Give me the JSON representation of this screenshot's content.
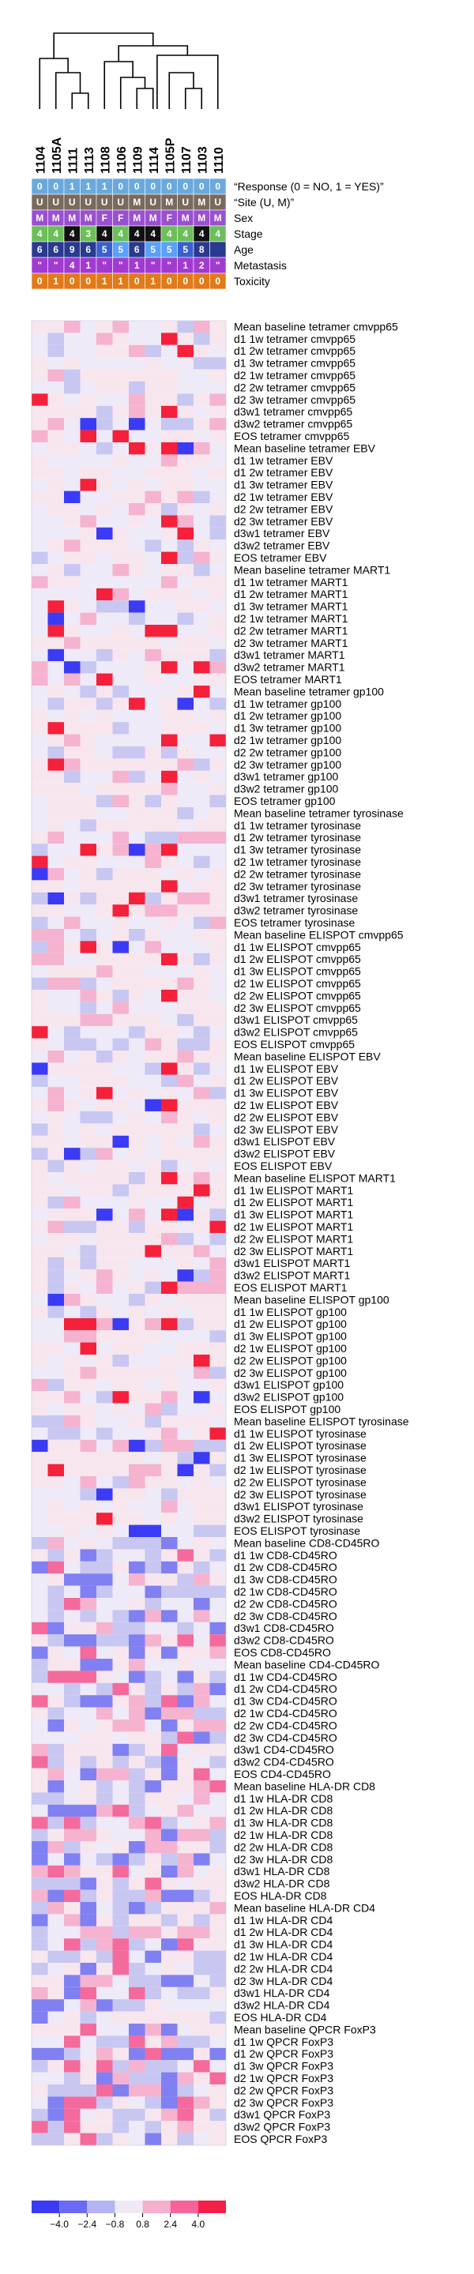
{
  "columns": [
    "1104",
    "1105A",
    "1111",
    "1113",
    "1108",
    "1106",
    "1109",
    "1114",
    "1105P",
    "1107",
    "1103",
    "1110"
  ],
  "covariates": [
    {
      "label": "“Response (0 = NO, 1 = YES)”",
      "values": [
        "0",
        "0",
        "1",
        "1",
        "1",
        "0",
        "0",
        "0",
        "0",
        "0",
        "0",
        "0"
      ],
      "colors": [
        "#6aa9de",
        "#6aa9de",
        "#6aa9de",
        "#6aa9de",
        "#6aa9de",
        "#6aa9de",
        "#6aa9de",
        "#6aa9de",
        "#6aa9de",
        "#6aa9de",
        "#6aa9de",
        "#6aa9de"
      ],
      "text_colors": [
        "#ffffff",
        "#ffffff",
        "#ffffff",
        "#ffffff",
        "#ffffff",
        "#ffffff",
        "#ffffff",
        "#ffffff",
        "#ffffff",
        "#ffffff",
        "#ffffff",
        "#ffffff"
      ]
    },
    {
      "label": "“Site (U, M)”",
      "values": [
        "U",
        "U",
        "U",
        "U",
        "U",
        "U",
        "M",
        "U",
        "M",
        "U",
        "M",
        "U"
      ],
      "colors": [
        "#7a6a5e",
        "#7a6a5e",
        "#7a6a5e",
        "#7a6a5e",
        "#7a6a5e",
        "#7a6a5e",
        "#7a6a5e",
        "#7a6a5e",
        "#7a6a5e",
        "#7a6a5e",
        "#7a6a5e",
        "#7a6a5e"
      ],
      "text_colors": [
        "#ffffff",
        "#ffffff",
        "#ffffff",
        "#ffffff",
        "#ffffff",
        "#ffffff",
        "#ffffff",
        "#ffffff",
        "#ffffff",
        "#ffffff",
        "#ffffff",
        "#ffffff"
      ]
    },
    {
      "label": "Sex",
      "values": [
        "M",
        "M",
        "M",
        "M",
        "F",
        "F",
        "M",
        "M",
        "F",
        "M",
        "M",
        "M"
      ],
      "colors": [
        "#9b4fd1",
        "#9b4fd1",
        "#9b4fd1",
        "#9b4fd1",
        "#9b4fd1",
        "#9b4fd1",
        "#9b4fd1",
        "#9b4fd1",
        "#9b4fd1",
        "#9b4fd1",
        "#9b4fd1",
        "#9b4fd1"
      ],
      "text_colors": [
        "#ffffff",
        "#ffffff",
        "#ffffff",
        "#ffffff",
        "#ffffff",
        "#ffffff",
        "#ffffff",
        "#ffffff",
        "#ffffff",
        "#ffffff",
        "#ffffff",
        "#ffffff"
      ]
    },
    {
      "label": "Stage",
      "values": [
        "4",
        "4",
        "4",
        "3",
        "4",
        "4",
        "4",
        "4",
        "4",
        "4",
        "4",
        "4"
      ],
      "colors": [
        "#6bbf59",
        "#6bbf59",
        "#111111",
        "#6bbf59",
        "#111111",
        "#6bbf59",
        "#111111",
        "#111111",
        "#6bbf59",
        "#6bbf59",
        "#111111",
        "#6bbf59"
      ],
      "text_colors": [
        "#ffffff",
        "#ffffff",
        "#ffffff",
        "#ffffff",
        "#ffffff",
        "#ffffff",
        "#ffffff",
        "#ffffff",
        "#ffffff",
        "#ffffff",
        "#ffffff",
        "#ffffff"
      ]
    },
    {
      "label": "Age",
      "values": [
        "6",
        "6",
        "9",
        "6",
        "5",
        "5",
        "6",
        "5",
        "5",
        "5",
        "8",
        ""
      ],
      "colors": [
        "#2a3a8f",
        "#2a3a8f",
        "#2a3a8f",
        "#2a3a8f",
        "#3a5fd0",
        "#5aa0ff",
        "#2a3a8f",
        "#5aa0ff",
        "#5aa0ff",
        "#3a5fd0",
        "#2a3a8f",
        "#2a3a8f"
      ],
      "text_colors": [
        "#ffffff",
        "#ffffff",
        "#ffffff",
        "#ffffff",
        "#ffffff",
        "#ffffff",
        "#ffffff",
        "#ffffff",
        "#ffffff",
        "#ffffff",
        "#ffffff",
        "#ffffff"
      ]
    },
    {
      "label": "Metastasis",
      "values": [
        "\"",
        "\"",
        "4",
        "1",
        "\"",
        "\"",
        "1",
        "\"",
        "\"",
        "1",
        "2",
        "\""
      ],
      "colors": [
        "#a23ad1",
        "#a23ad1",
        "#a23ad1",
        "#a23ad1",
        "#a23ad1",
        "#a23ad1",
        "#a23ad1",
        "#a23ad1",
        "#a23ad1",
        "#a23ad1",
        "#a23ad1",
        "#a23ad1"
      ],
      "text_colors": [
        "#ffffff",
        "#ffffff",
        "#ffffff",
        "#ffffff",
        "#ffffff",
        "#ffffff",
        "#ffffff",
        "#ffffff",
        "#ffffff",
        "#ffffff",
        "#ffffff",
        "#ffffff"
      ]
    },
    {
      "label": "Toxicity",
      "values": [
        "0",
        "1",
        "0",
        "0",
        "1",
        "1",
        "0",
        "1",
        "0",
        "0",
        "0",
        "0"
      ],
      "colors": [
        "#e07a1a",
        "#e07a1a",
        "#e07a1a",
        "#e07a1a",
        "#e07a1a",
        "#e07a1a",
        "#e07a1a",
        "#e07a1a",
        "#e07a1a",
        "#e07a1a",
        "#e07a1a",
        "#e07a1a"
      ],
      "text_colors": [
        "#ffffff",
        "#ffffff",
        "#ffffff",
        "#ffffff",
        "#ffffff",
        "#ffffff",
        "#ffffff",
        "#ffffff",
        "#ffffff",
        "#ffffff",
        "#ffffff",
        "#ffffff"
      ]
    }
  ],
  "rows": [
    "Mean baseline tetramer cmvpp65",
    "d1 1w tetramer cmvpp65",
    "d1 2w tetramer cmvpp65",
    "d1 3w tetramer cmvpp65",
    "d2 1w tetramer cmvpp65",
    "d2 2w tetramer cmvpp65",
    "d2 3w tetramer cmvpp65",
    "d3w1 tetramer cmvpp65",
    "d3w2 tetramer cmvpp65",
    "EOS tetramer cmvpp65",
    "Mean baseline tetramer EBV",
    "d1 1w tetramer EBV",
    "d1 2w tetramer EBV",
    "d1 3w tetramer EBV",
    "d2 1w tetramer EBV",
    "d2 2w tetramer EBV",
    "d2 3w tetramer EBV",
    "d3w1 tetramer EBV",
    "d3w2 tetramer EBV",
    "EOS tetramer EBV",
    "Mean baseline tetramer MART1",
    "d1 1w tetramer MART1",
    "d1 2w tetramer MART1",
    "d1 3w tetramer MART1",
    "d2 1w tetramer MART1",
    "d2 2w tetramer MART1",
    "d2 3w tetramer MART1",
    "d3w1 tetramer MART1",
    "d3w2 tetramer MART1",
    "EOS tetramer MART1",
    "Mean baseline tetramer gp100",
    "d1 1w tetramer gp100",
    "d1 2w tetramer gp100",
    "d1 3w tetramer gp100",
    "d2 1w tetramer gp100",
    "d2 2w tetramer gp100",
    "d2 3w tetramer gp100",
    "d3w1 tetramer gp100",
    "d3w2 tetramer gp100",
    "EOS tetramer gp100",
    "Mean baseline tetramer tyrosinase",
    "d1 1w tetramer tyrosinase",
    "d1 2w tetramer tyrosinase",
    "d1 3w tetramer tyrosinase",
    "d2 1w tetramer tyrosinase",
    "d2 2w tetramer tyrosinase",
    "d2 3w tetramer tyrosinase",
    "d3w1 tetramer tyrosinase",
    "d3w2 tetramer tyrosinase",
    "EOS tetramer tyrosinase",
    "Mean baseline ELISPOT cmvpp65",
    "d1 1w ELISPOT cmvpp65",
    "d1 2w ELISPOT cmvpp65",
    "d1 3w ELISPOT cmvpp65",
    "d2 1w ELISPOT cmvpp65",
    "d2 2w ELISPOT cmvpp65",
    "d2 3w ELISPOT cmvpp65",
    "d3w1 ELISPOT cmvpp65",
    "d3w2 ELISPOT cmvpp65",
    "EOS ELISPOT cmvpp65",
    "Mean baseline ELISPOT EBV",
    "d1 1w ELISPOT EBV",
    "d1 2w ELISPOT EBV",
    "d1 3w ELISPOT EBV",
    "d2 1w ELISPOT EBV",
    "d2 2w ELISPOT EBV",
    "d2 3w ELISPOT EBV",
    "d3w1 ELISPOT EBV",
    "d3w2 ELISPOT EBV",
    "EOS ELISPOT EBV",
    "Mean baseline ELISPOT MART1",
    "d1 1w ELISPOT MART1",
    "d1 2w ELISPOT MART1",
    "d1 3w ELISPOT MART1",
    "d2 1w ELISPOT MART1",
    "d2 2w ELISPOT MART1",
    "d2 3w ELISPOT MART1",
    "d3w1 ELISPOT MART1",
    "d3w2 ELISPOT MART1",
    "EOS ELISPOT MART1",
    "Mean baseline ELISPOT gp100",
    "d1 1w ELISPOT gp100",
    "d1 2w ELISPOT gp100",
    "d1 3w ELISPOT gp100",
    "d2 1w ELISPOT gp100",
    "d2 2w ELISPOT gp100",
    "d2 3w ELISPOT gp100",
    "d3w1 ELISPOT gp100",
    "d3w2 ELISPOT gp100",
    "EOS ELISPOT gp100",
    "Mean baseline ELISPOT tyrosinase",
    "d1 1w ELISPOT tyrosinase",
    "d1 2w ELISPOT tyrosinase",
    "d1 3w ELISPOT tyrosinase",
    "d2 1w ELISPOT tyrosinase",
    "d2 2w ELISPOT tyrosinase",
    "d2 3w ELISPOT tyrosinase",
    "d3w1 ELISPOT tyrosinase",
    "d3w2 ELISPOT tyrosinase",
    "EOS ELISPOT tyrosinase",
    "Mean baseline CD8-CD45RO",
    "d1 1w CD8-CD45RO",
    "d1 2w CD8-CD45RO",
    "d1 3w CD8-CD45RO",
    "d2 1w CD8-CD45RO",
    "d2 2w CD8-CD45RO",
    "d2 3w CD8-CD45RO",
    "d3w1 CD8-CD45RO",
    "d3w2 CD8-CD45RO",
    "EOS CD8-CD45RO",
    "Mean baseline CD4-CD45RO",
    "d1 1w CD4-CD45RO",
    "d1 2w CD4-CD45RO",
    "d1 3w CD4-CD45RO",
    "d2 1w CD4-CD45RO",
    "d2 2w CD4-CD45RO",
    "d2 3w CD4-CD45RO",
    "d3w1 CD4-CD45RO",
    "d3w2 CD4-CD45RO",
    "EOS CD4-CD45RO",
    "Mean baseline HLA-DR CD8",
    "d1 1w HLA-DR CD8",
    "d1 2w HLA-DR CD8",
    "d1 3w HLA-DR CD8",
    "d2 1w HLA-DR CD8",
    "d2 2w HLA-DR CD8",
    "d2 3w HLA-DR CD8",
    "d3w1 HLA-DR CD8",
    "d3w2 HLA-DR CD8",
    "EOS HLA-DR CD8",
    "Mean baseline HLA-DR CD4",
    "d1 1w HLA-DR CD4",
    "d1 2w HLA-DR CD4",
    "d1 3w HLA-DR CD4",
    "d2 1w HLA-DR CD4",
    "d2 2w HLA-DR CD4",
    "d2 3w HLA-DR CD4",
    "d3w1 HLA-DR CD4",
    "d3w2 HLA-DR CD4",
    "EOS HLA-DR CD4",
    "Mean baseline QPCR FoxP3",
    "d1 1w QPCR FoxP3",
    "d1 2w QPCR FoxP3",
    "d1 3w QPCR FoxP3",
    "d2 1w QPCR FoxP3",
    "d2 2w QPCR FoxP3",
    "d2 3w QPCR FoxP3",
    "d3w1 QPCR FoxP3",
    "d3w2 QPCR FoxP3",
    "EOS QPCR FoxP3"
  ],
  "legend": {
    "ticks": [
      "−4.0",
      "−2.4",
      "−0.8",
      "0.8",
      "2.4",
      "4.0"
    ],
    "colors": [
      "#3b3bf5",
      "#6a6af7",
      "#b4b4f5",
      "#f0e8f5",
      "#f5b0cc",
      "#f5639a",
      "#f5204a"
    ]
  },
  "colors": {
    "high": "#f5203a",
    "low": "#3a3af5",
    "mid": "#f0eef8",
    "missing": "#8a8a8a"
  }
}
